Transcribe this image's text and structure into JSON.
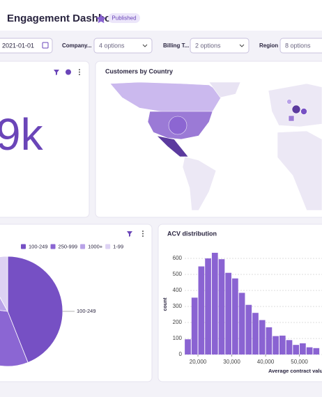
{
  "header": {
    "title": "Engagement Dashboard",
    "status": "Published"
  },
  "filters": {
    "date": "2021-01-01",
    "items": [
      {
        "label": "Company...",
        "value": "4 options"
      },
      {
        "label": "Billing T...",
        "value": "2 options"
      },
      {
        "label": "Region",
        "value": "8 options"
      }
    ]
  },
  "kpi": {
    "value": "9k"
  },
  "map": {
    "title": "Customers by Country"
  },
  "pie_chart": {
    "type": "pie",
    "categories": [
      "100-249",
      "250-999",
      "1000+",
      "1-99"
    ],
    "values": [
      44,
      33,
      15,
      8
    ],
    "colors": [
      "#7650c4",
      "#8b66d3",
      "#b9a2e8",
      "#ddd2f3"
    ]
  },
  "histogram": {
    "type": "histogram",
    "title": "ACV distribution",
    "x_label": "Average contract value",
    "y_label": "count",
    "bins": [
      16000,
      18000,
      20000,
      22000,
      24000,
      26000,
      28000,
      30000,
      32000,
      34000,
      36000,
      38000,
      40000,
      42000,
      44000,
      46000,
      48000,
      50000,
      52000,
      54000,
      56000
    ],
    "values": [
      95,
      355,
      550,
      600,
      635,
      595,
      510,
      475,
      385,
      310,
      260,
      215,
      170,
      115,
      118,
      90,
      60,
      70,
      45,
      40
    ],
    "xlim": [
      15500,
      57000
    ],
    "ylim": [
      0,
      650
    ],
    "xticks": [
      {
        "value": 20000,
        "label": "20,000"
      },
      {
        "value": 30000,
        "label": "30,000"
      },
      {
        "value": 40000,
        "label": "40,000"
      },
      {
        "value": 50000,
        "label": "50,000"
      }
    ],
    "yticks": [
      0,
      100,
      200,
      300,
      400,
      500,
      600
    ],
    "color": "#8a63d2",
    "grid": true
  }
}
